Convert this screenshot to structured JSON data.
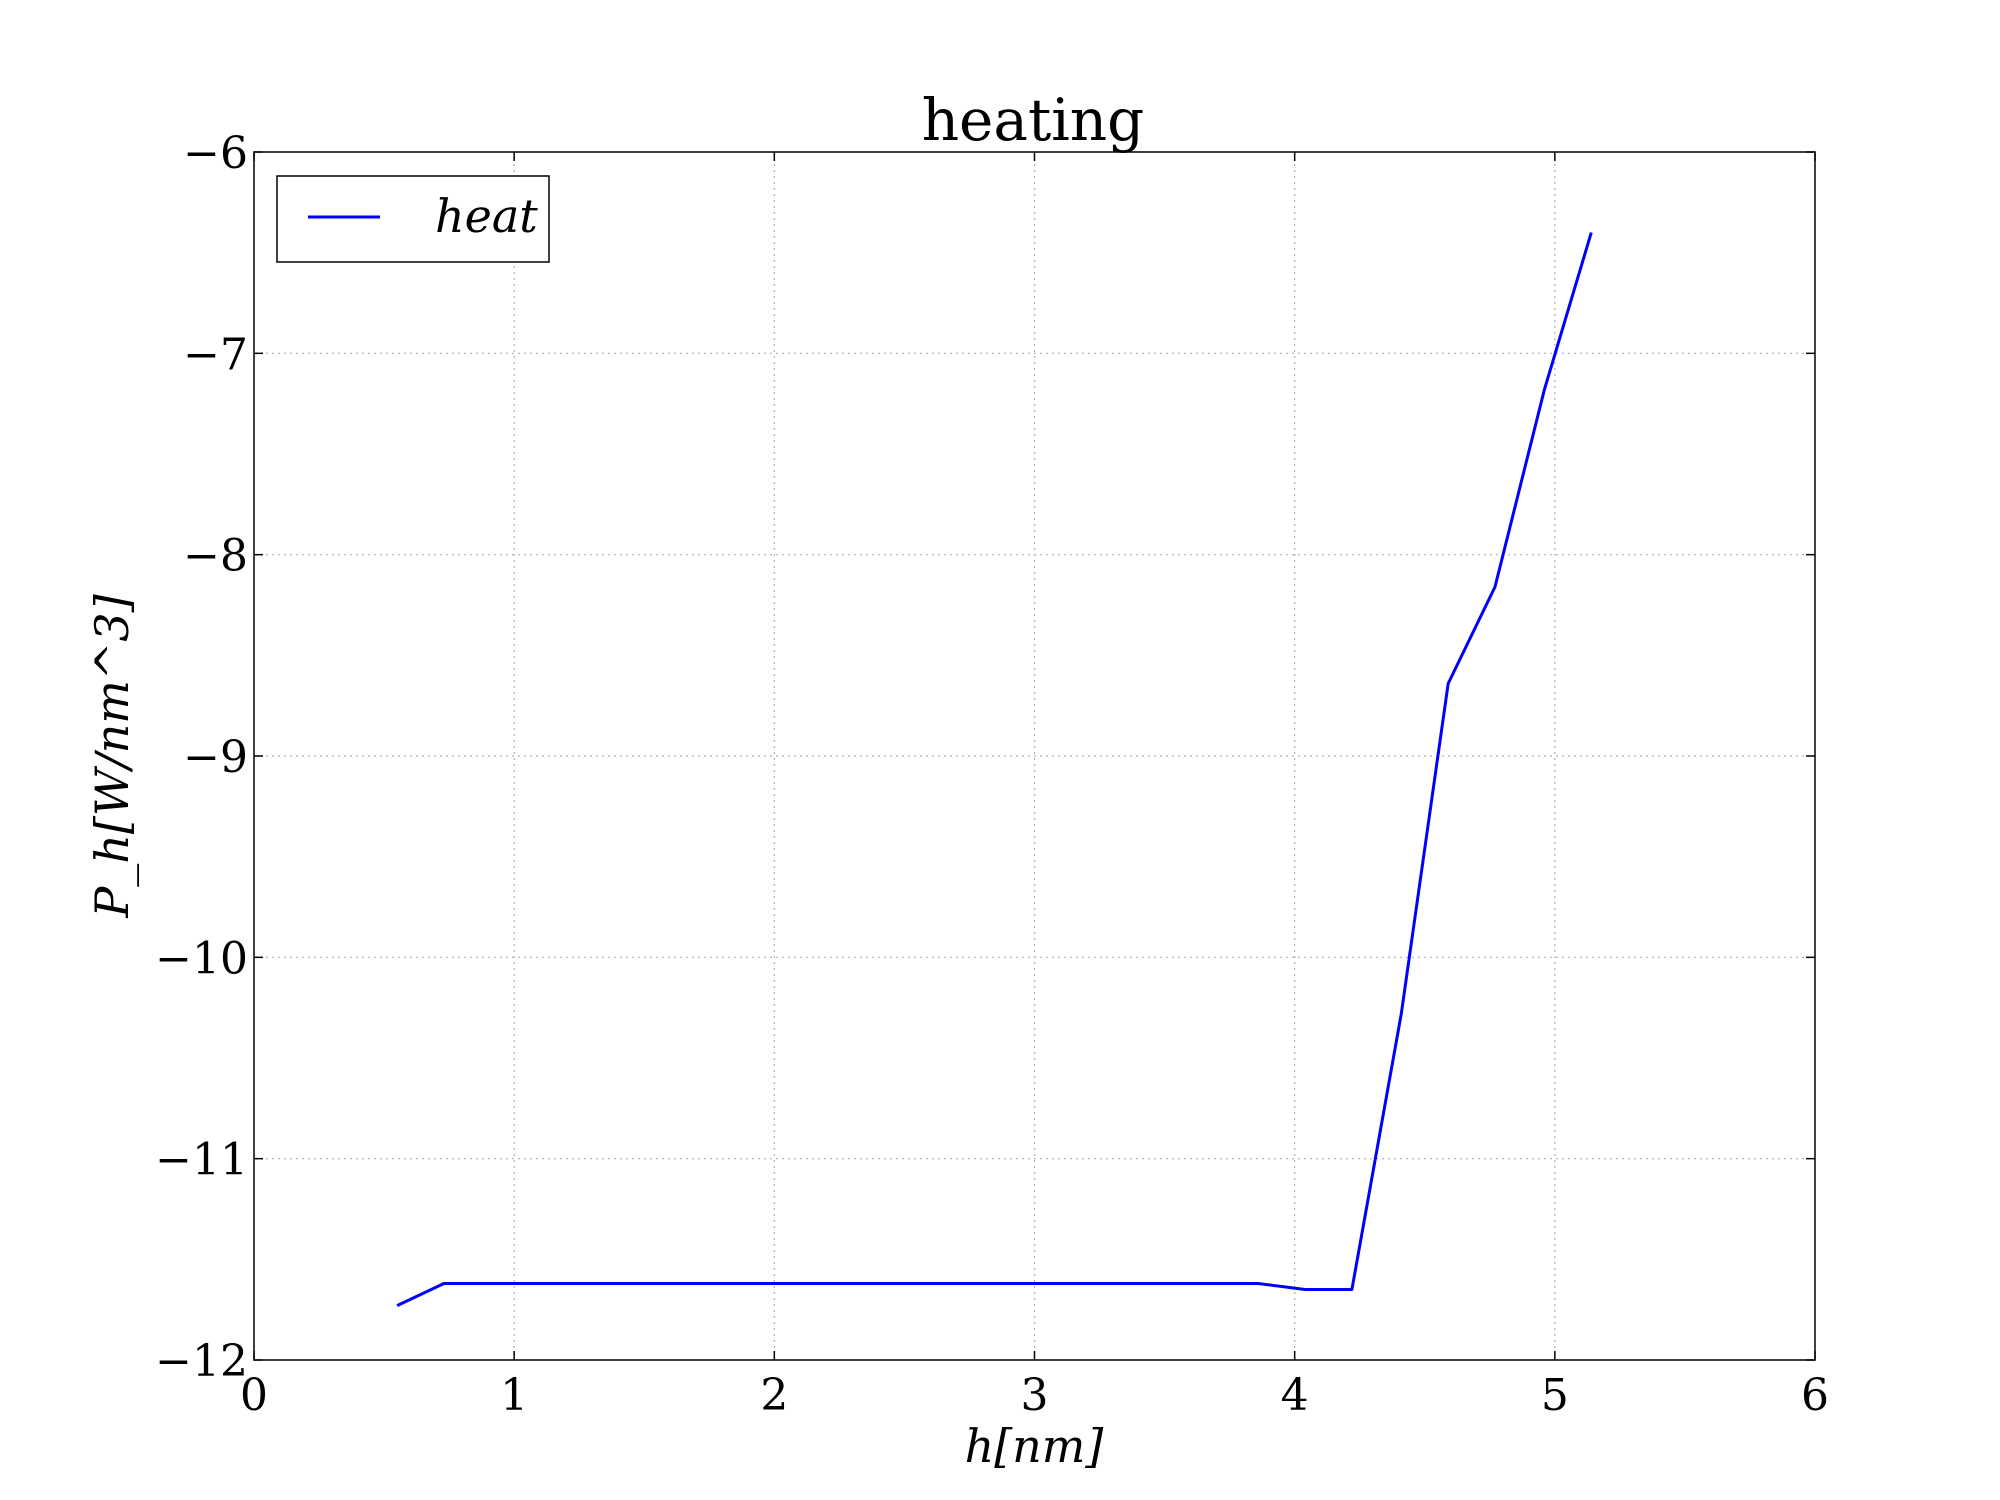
{
  "chart_data": {
    "type": "line",
    "title": "heating",
    "xlabel": "h[nm]",
    "ylabel": "P_h[W/nm^3]",
    "xlim": [
      0,
      6
    ],
    "ylim": [
      -12,
      -6
    ],
    "xticks": [
      0,
      1,
      2,
      3,
      4,
      5,
      6
    ],
    "yticks": [
      -12,
      -11,
      -10,
      -9,
      -8,
      -7,
      -6
    ],
    "xtick_labels": [
      "0",
      "1",
      "2",
      "3",
      "4",
      "5",
      "6"
    ],
    "ytick_labels": [
      "−12",
      "−11",
      "−10",
      "−9",
      "−8",
      "−7",
      "−6"
    ],
    "grid": true,
    "legend_position": "top-left",
    "series": [
      {
        "name": "heat",
        "color": "#0000ff",
        "x": [
          0.55,
          0.73,
          0.91,
          1.1,
          1.28,
          1.46,
          1.64,
          1.82,
          2.0,
          2.19,
          2.37,
          2.55,
          2.73,
          2.91,
          3.1,
          3.28,
          3.46,
          3.64,
          3.86,
          4.04,
          4.22,
          4.41,
          4.59,
          4.77,
          4.96,
          5.14
        ],
        "y": [
          -11.73,
          -11.62,
          -11.62,
          -11.62,
          -11.62,
          -11.62,
          -11.62,
          -11.62,
          -11.62,
          -11.62,
          -11.62,
          -11.62,
          -11.62,
          -11.62,
          -11.62,
          -11.62,
          -11.62,
          -11.62,
          -11.62,
          -11.65,
          -11.65,
          -10.28,
          -8.64,
          -8.16,
          -7.18,
          -6.4
        ]
      }
    ]
  }
}
